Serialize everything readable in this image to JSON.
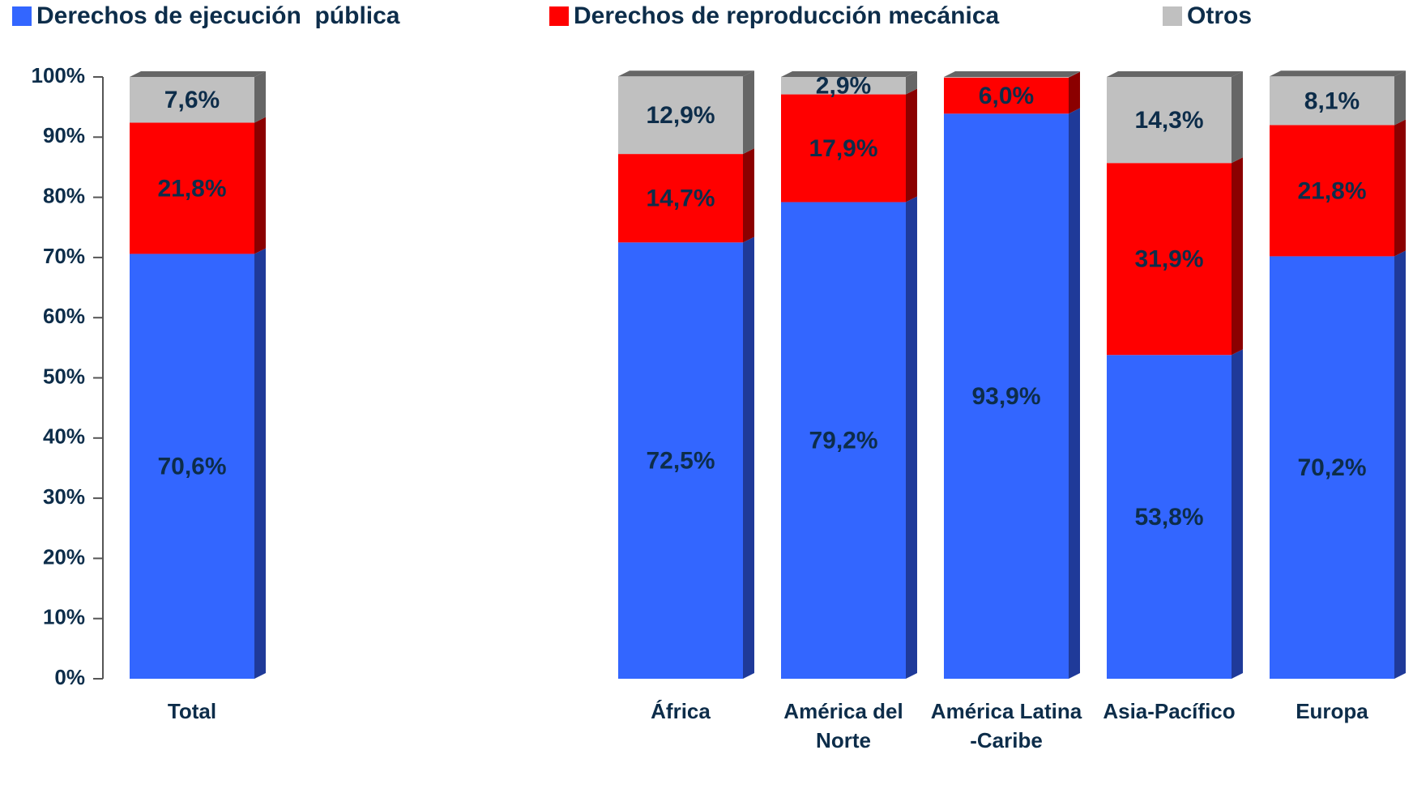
{
  "chart_data": {
    "type": "stacked_bar",
    "categories": [
      "Total",
      null,
      null,
      "África",
      "América del Norte",
      "América Latina -Caribe",
      "Asia-Pacífico",
      "Europa"
    ],
    "series": [
      {
        "name": "Derechos de ejecución  pública",
        "color": "#3366ff",
        "side": "#1f3a99",
        "values": [
          70.6,
          null,
          null,
          72.5,
          79.2,
          93.9,
          53.8,
          70.2
        ],
        "value_labels": [
          "70,6%",
          null,
          null,
          "72,5%",
          "79,2%",
          "93,9%",
          "53,8%",
          "70,2%"
        ]
      },
      {
        "name": "Derechos de reproducción mecánica",
        "color": "#ff0000",
        "side": "#8b0000",
        "values": [
          21.8,
          null,
          null,
          14.7,
          17.9,
          6.0,
          31.9,
          21.8
        ],
        "value_labels": [
          "21,8%",
          null,
          null,
          "14,7%",
          "17,9%",
          "6,0%",
          "31,9%",
          "21,8%"
        ]
      },
      {
        "name": "Otros",
        "color": "#c0c0c0",
        "side": "#666666",
        "values": [
          7.6,
          null,
          null,
          12.9,
          2.9,
          0.1,
          14.3,
          8.1
        ],
        "value_labels": [
          "7,6%",
          null,
          null,
          "12,9%",
          "2,9%",
          null,
          "14,3%",
          "8,1%"
        ]
      }
    ],
    "ylim": [
      0,
      100
    ],
    "yticks": [
      {
        "value": 0,
        "label": "0%"
      },
      {
        "value": 10,
        "label": "10%"
      },
      {
        "value": 20,
        "label": "20%"
      },
      {
        "value": 30,
        "label": "30%"
      },
      {
        "value": 40,
        "label": "40%"
      },
      {
        "value": 50,
        "label": "50%"
      },
      {
        "value": 60,
        "label": "60%"
      },
      {
        "value": 70,
        "label": "70%"
      },
      {
        "value": 80,
        "label": "80%"
      },
      {
        "value": 90,
        "label": "90%"
      },
      {
        "value": 100,
        "label": "100%"
      }
    ],
    "legend": "top"
  }
}
